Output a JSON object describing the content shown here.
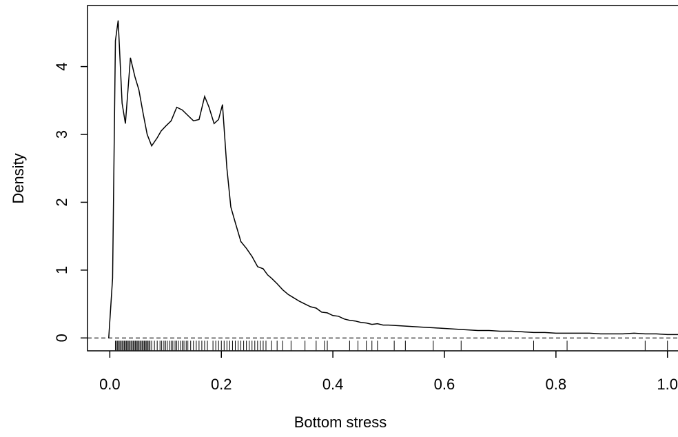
{
  "chart_data": {
    "type": "line",
    "xlabel": "Bottom stress",
    "ylabel": "Density",
    "xlim": [
      -0.04,
      1.03
    ],
    "ylim": [
      -0.19,
      4.9
    ],
    "xticks": [
      0.0,
      0.2,
      0.4,
      0.6,
      0.8,
      1.0
    ],
    "xtick_labels": [
      "0.0",
      "0.2",
      "0.4",
      "0.6",
      "0.8",
      "1.0"
    ],
    "yticks": [
      0,
      1,
      2,
      3,
      4
    ],
    "ytick_labels": [
      "0",
      "1",
      "2",
      "3",
      "4"
    ],
    "reference_line": {
      "y": 0,
      "style": "dashed"
    },
    "grid": false,
    "series": [
      {
        "x": [
          -0.002,
          0.005,
          0.01,
          0.015,
          0.022,
          0.028,
          0.037,
          0.045,
          0.052,
          0.06,
          0.067,
          0.075,
          0.085,
          0.092,
          0.1,
          0.11,
          0.12,
          0.13,
          0.14,
          0.15,
          0.16,
          0.17,
          0.178,
          0.187,
          0.195,
          0.202,
          0.21,
          0.217,
          0.225,
          0.235,
          0.245,
          0.255,
          0.265,
          0.275,
          0.283,
          0.29,
          0.3,
          0.31,
          0.32,
          0.33,
          0.34,
          0.35,
          0.36,
          0.37,
          0.38,
          0.39,
          0.4,
          0.41,
          0.42,
          0.43,
          0.44,
          0.45,
          0.46,
          0.47,
          0.48,
          0.49,
          0.5,
          0.52,
          0.54,
          0.56,
          0.58,
          0.6,
          0.62,
          0.64,
          0.66,
          0.68,
          0.7,
          0.72,
          0.74,
          0.76,
          0.78,
          0.8,
          0.82,
          0.84,
          0.86,
          0.88,
          0.9,
          0.92,
          0.94,
          0.96,
          0.98,
          1.0,
          1.02,
          1.03
        ],
        "y": [
          0.0,
          0.88,
          4.38,
          4.68,
          3.46,
          3.16,
          4.13,
          3.85,
          3.66,
          3.3,
          3.0,
          2.83,
          2.95,
          3.05,
          3.12,
          3.2,
          3.4,
          3.36,
          3.28,
          3.2,
          3.22,
          3.56,
          3.4,
          3.16,
          3.22,
          3.44,
          2.5,
          1.93,
          1.7,
          1.42,
          1.32,
          1.2,
          1.05,
          1.02,
          0.93,
          0.88,
          0.8,
          0.71,
          0.64,
          0.59,
          0.54,
          0.5,
          0.46,
          0.44,
          0.38,
          0.37,
          0.33,
          0.32,
          0.28,
          0.26,
          0.25,
          0.23,
          0.22,
          0.2,
          0.21,
          0.19,
          0.19,
          0.18,
          0.17,
          0.16,
          0.15,
          0.14,
          0.13,
          0.12,
          0.11,
          0.11,
          0.1,
          0.1,
          0.09,
          0.08,
          0.08,
          0.07,
          0.07,
          0.07,
          0.07,
          0.06,
          0.06,
          0.06,
          0.07,
          0.06,
          0.06,
          0.05,
          0.05,
          0.05
        ]
      }
    ],
    "rug": [
      0.01,
      0.012,
      0.014,
      0.016,
      0.018,
      0.02,
      0.022,
      0.024,
      0.026,
      0.028,
      0.03,
      0.032,
      0.034,
      0.036,
      0.038,
      0.04,
      0.042,
      0.044,
      0.046,
      0.048,
      0.05,
      0.052,
      0.054,
      0.056,
      0.058,
      0.06,
      0.062,
      0.064,
      0.066,
      0.068,
      0.07,
      0.072,
      0.075,
      0.08,
      0.085,
      0.09,
      0.093,
      0.097,
      0.1,
      0.103,
      0.107,
      0.11,
      0.113,
      0.117,
      0.12,
      0.123,
      0.127,
      0.13,
      0.133,
      0.137,
      0.14,
      0.145,
      0.15,
      0.155,
      0.16,
      0.165,
      0.17,
      0.175,
      0.185,
      0.19,
      0.195,
      0.2,
      0.205,
      0.21,
      0.215,
      0.22,
      0.225,
      0.23,
      0.235,
      0.24,
      0.245,
      0.25,
      0.255,
      0.26,
      0.265,
      0.27,
      0.275,
      0.28,
      0.29,
      0.3,
      0.31,
      0.325,
      0.35,
      0.37,
      0.385,
      0.39,
      0.43,
      0.445,
      0.46,
      0.47,
      0.48,
      0.51,
      0.53,
      0.58,
      0.63,
      0.76,
      0.82,
      0.96,
      1.0
    ]
  }
}
